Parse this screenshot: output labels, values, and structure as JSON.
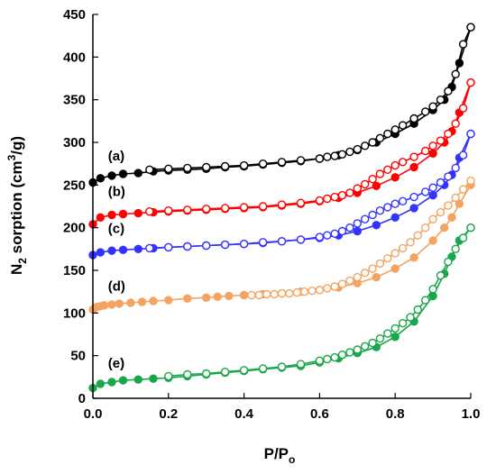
{
  "chart_data": {
    "type": "line",
    "xlabel": "P/P",
    "xlabel_sub": "o",
    "ylabel_prefix": "N",
    "ylabel_sub": "2",
    "ylabel_mid": " sorption (cm",
    "ylabel_sup": "3",
    "ylabel_suffix": "/g)",
    "xlim": [
      0,
      1
    ],
    "ylim": [
      0,
      450
    ],
    "xticks": [
      0.0,
      0.2,
      0.4,
      0.6,
      0.8,
      1.0
    ],
    "xtick_labels": [
      "0.0",
      "0.2",
      "0.4",
      "0.6",
      "0.8",
      "1.0"
    ],
    "yticks": [
      0,
      50,
      100,
      150,
      200,
      250,
      300,
      350,
      400,
      450
    ],
    "ytick_labels": [
      "0",
      "50",
      "100",
      "150",
      "200",
      "250",
      "300",
      "350",
      "400",
      "450"
    ],
    "grid": false,
    "legend": "none",
    "series": [
      {
        "label": "(a)",
        "color": "#000000",
        "label_x": 0.04,
        "label_y": 279,
        "adsorption": {
          "x": [
            0.0,
            0.02,
            0.05,
            0.08,
            0.12,
            0.16,
            0.2,
            0.25,
            0.3,
            0.35,
            0.4,
            0.45,
            0.5,
            0.55,
            0.6,
            0.65,
            0.7,
            0.75,
            0.8,
            0.85,
            0.9,
            0.93,
            0.95,
            0.97,
            1.0
          ],
          "y": [
            253,
            258,
            261,
            263,
            264,
            266,
            267,
            268,
            269,
            271,
            272,
            274,
            276,
            278,
            281,
            285,
            291,
            300,
            310,
            322,
            338,
            350,
            365,
            393,
            435
          ]
        },
        "desorption": {
          "x": [
            1.0,
            0.98,
            0.96,
            0.94,
            0.92,
            0.9,
            0.88,
            0.85,
            0.82,
            0.8,
            0.78,
            0.76,
            0.74,
            0.72,
            0.7,
            0.68,
            0.66,
            0.64,
            0.62,
            0.6,
            0.55,
            0.5,
            0.45,
            0.4,
            0.35,
            0.3,
            0.25,
            0.2,
            0.15
          ],
          "y": [
            435,
            415,
            380,
            360,
            350,
            342,
            336,
            328,
            320,
            315,
            310,
            305,
            300,
            296,
            292,
            289,
            286,
            284,
            283,
            281,
            279,
            277,
            275,
            273,
            272,
            271,
            270,
            269,
            268
          ]
        }
      },
      {
        "label": "(b)",
        "color": "#ff0000",
        "label_x": 0.04,
        "label_y": 237,
        "adsorption": {
          "x": [
            0.0,
            0.02,
            0.05,
            0.08,
            0.12,
            0.16,
            0.2,
            0.25,
            0.3,
            0.35,
            0.4,
            0.45,
            0.5,
            0.55,
            0.6,
            0.65,
            0.7,
            0.75,
            0.8,
            0.85,
            0.9,
            0.93,
            0.95,
            0.97,
            1.0
          ],
          "y": [
            204,
            212,
            215,
            216,
            217,
            218,
            219,
            220,
            221,
            222,
            223,
            224,
            226,
            228,
            231,
            235,
            241,
            249,
            259,
            271,
            287,
            300,
            313,
            335,
            370
          ]
        },
        "desorption": {
          "x": [
            1.0,
            0.98,
            0.96,
            0.94,
            0.92,
            0.9,
            0.88,
            0.85,
            0.82,
            0.8,
            0.78,
            0.76,
            0.74,
            0.72,
            0.7,
            0.68,
            0.66,
            0.64,
            0.62,
            0.6,
            0.55,
            0.5,
            0.45,
            0.4,
            0.35,
            0.3,
            0.25,
            0.2,
            0.15
          ],
          "y": [
            370,
            340,
            322,
            310,
            302,
            296,
            290,
            283,
            277,
            273,
            268,
            263,
            257,
            251,
            246,
            241,
            238,
            236,
            234,
            232,
            229,
            227,
            225,
            224,
            223,
            222,
            221,
            220,
            219
          ]
        }
      },
      {
        "label": "(c)",
        "color": "#3333ff",
        "label_x": 0.04,
        "label_y": 194,
        "adsorption": {
          "x": [
            0.0,
            0.02,
            0.05,
            0.08,
            0.12,
            0.16,
            0.2,
            0.25,
            0.3,
            0.35,
            0.4,
            0.45,
            0.5,
            0.55,
            0.6,
            0.65,
            0.7,
            0.75,
            0.8,
            0.85,
            0.9,
            0.93,
            0.95,
            0.97,
            1.0
          ],
          "y": [
            168,
            171,
            173,
            174,
            175,
            176,
            177,
            178,
            179,
            180,
            181,
            182,
            184,
            186,
            188,
            191,
            196,
            203,
            212,
            223,
            238,
            250,
            262,
            282,
            310
          ]
        },
        "desorption": {
          "x": [
            1.0,
            0.98,
            0.96,
            0.94,
            0.92,
            0.9,
            0.88,
            0.85,
            0.82,
            0.8,
            0.78,
            0.76,
            0.74,
            0.72,
            0.7,
            0.68,
            0.66,
            0.64,
            0.62,
            0.6,
            0.55,
            0.5,
            0.45,
            0.4,
            0.35,
            0.3,
            0.25,
            0.2,
            0.15
          ],
          "y": [
            310,
            285,
            270,
            260,
            253,
            247,
            242,
            236,
            231,
            228,
            224,
            220,
            215,
            210,
            205,
            200,
            196,
            193,
            191,
            189,
            186,
            184,
            183,
            181,
            180,
            179,
            178,
            177,
            176
          ]
        }
      },
      {
        "label": "(d)",
        "color": "#f4a460",
        "label_x": 0.04,
        "label_y": 126,
        "adsorption": {
          "x": [
            0.0,
            0.01,
            0.02,
            0.03,
            0.05,
            0.07,
            0.1,
            0.13,
            0.16,
            0.2,
            0.25,
            0.3,
            0.33,
            0.36,
            0.4,
            0.45,
            0.5,
            0.55,
            0.6,
            0.65,
            0.7,
            0.75,
            0.8,
            0.85,
            0.9,
            0.93,
            0.95,
            0.97,
            1.0
          ],
          "y": [
            104,
            107,
            108,
            109,
            110,
            111,
            112,
            113,
            114,
            115,
            117,
            118,
            119,
            120,
            121,
            122,
            123,
            125,
            127,
            130,
            135,
            142,
            152,
            165,
            185,
            200,
            212,
            228,
            250
          ]
        },
        "desorption": {
          "x": [
            1.0,
            0.98,
            0.96,
            0.94,
            0.92,
            0.9,
            0.88,
            0.86,
            0.84,
            0.82,
            0.8,
            0.78,
            0.76,
            0.74,
            0.72,
            0.7,
            0.68,
            0.66,
            0.64,
            0.62,
            0.6,
            0.58,
            0.56,
            0.54,
            0.52,
            0.5,
            0.48,
            0.46,
            0.44,
            0.42
          ],
          "y": [
            255,
            245,
            235,
            226,
            218,
            210,
            200,
            191,
            183,
            176,
            170,
            164,
            158,
            152,
            147,
            142,
            138,
            134,
            131,
            129,
            127,
            126,
            125,
            124,
            123,
            123,
            122,
            122,
            121,
            121
          ]
        }
      },
      {
        "label": "(e)",
        "color": "#1aa64a",
        "label_x": 0.04,
        "label_y": 36,
        "adsorption": {
          "x": [
            0.0,
            0.02,
            0.05,
            0.08,
            0.12,
            0.16,
            0.2,
            0.25,
            0.3,
            0.35,
            0.4,
            0.45,
            0.5,
            0.55,
            0.6,
            0.65,
            0.7,
            0.75,
            0.8,
            0.85,
            0.9,
            0.93,
            0.95,
            0.97,
            1.0
          ],
          "y": [
            12,
            17,
            19,
            21,
            22,
            23,
            24,
            26,
            28,
            30,
            32,
            34,
            36,
            38,
            42,
            47,
            53,
            60,
            72,
            90,
            120,
            146,
            166,
            185,
            200
          ]
        },
        "desorption": {
          "x": [
            1.0,
            0.98,
            0.96,
            0.94,
            0.92,
            0.9,
            0.88,
            0.86,
            0.84,
            0.82,
            0.8,
            0.78,
            0.76,
            0.74,
            0.72,
            0.7,
            0.68,
            0.66,
            0.64,
            0.62,
            0.6,
            0.55,
            0.5,
            0.45,
            0.4,
            0.35,
            0.3,
            0.25,
            0.2
          ],
          "y": [
            200,
            188,
            175,
            160,
            144,
            128,
            115,
            104,
            95,
            88,
            82,
            76,
            70,
            65,
            61,
            57,
            54,
            51,
            48,
            46,
            44,
            40,
            37,
            35,
            33,
            31,
            29,
            28,
            26
          ]
        }
      }
    ]
  }
}
